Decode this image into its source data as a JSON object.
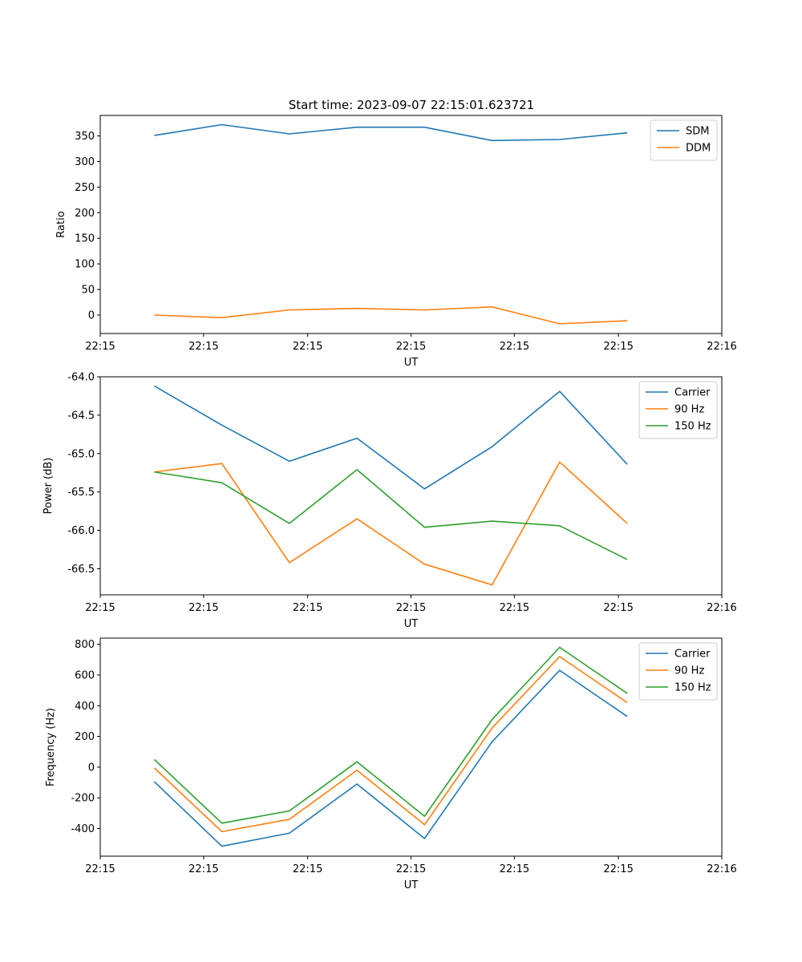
{
  "figure_title": "Start time: 2023-09-07 22:15:01.623721",
  "chart_data": [
    {
      "type": "line",
      "title": "Start time: 2023-09-07 22:15:01.623721",
      "xlabel": "UT",
      "ylabel": "Ratio",
      "x_points": [
        1,
        2,
        3,
        4,
        5,
        6,
        7,
        8
      ],
      "xlim": [
        0.2,
        9.4
      ],
      "xticks": [
        {
          "pos": 0.2,
          "label": "22:15"
        },
        {
          "pos": 1.73,
          "label": "22:15"
        },
        {
          "pos": 3.27,
          "label": "22:15"
        },
        {
          "pos": 4.8,
          "label": "22:15"
        },
        {
          "pos": 6.33,
          "label": "22:15"
        },
        {
          "pos": 7.87,
          "label": "22:15"
        },
        {
          "pos": 9.4,
          "label": "22:16"
        }
      ],
      "ylim": [
        -36,
        390
      ],
      "yticks": [
        0,
        50,
        100,
        150,
        200,
        250,
        300,
        350
      ],
      "legend_position": "top-right",
      "series": [
        {
          "name": "SDM",
          "color": "#1f77b4",
          "values": [
            351,
            372,
            354,
            367,
            367,
            341,
            343,
            356
          ]
        },
        {
          "name": "DDM",
          "color": "#ff7f0e",
          "values": [
            0,
            -5,
            10,
            13,
            10,
            16,
            -17,
            -11
          ]
        }
      ]
    },
    {
      "type": "line",
      "title": "",
      "xlabel": "UT",
      "ylabel": "Power (dB)",
      "x_points": [
        1,
        2,
        3,
        4,
        5,
        6,
        7,
        8
      ],
      "xlim": [
        0.2,
        9.4
      ],
      "xticks": [
        {
          "pos": 0.2,
          "label": "22:15"
        },
        {
          "pos": 1.73,
          "label": "22:15"
        },
        {
          "pos": 3.27,
          "label": "22:15"
        },
        {
          "pos": 4.8,
          "label": "22:15"
        },
        {
          "pos": 6.33,
          "label": "22:15"
        },
        {
          "pos": 7.87,
          "label": "22:15"
        },
        {
          "pos": 9.4,
          "label": "22:16"
        }
      ],
      "ylim": [
        -66.84,
        -64.0
      ],
      "yticks": [
        -64.0,
        -64.5,
        -65.0,
        -65.5,
        -66.0,
        -66.5
      ],
      "legend_position": "top-right",
      "series": [
        {
          "name": "Carrier",
          "color": "#1f77b4",
          "values": [
            -64.12,
            -64.63,
            -65.1,
            -64.8,
            -65.46,
            -64.91,
            -64.19,
            -65.14
          ]
        },
        {
          "name": "90 Hz",
          "color": "#ff7f0e",
          "values": [
            -65.24,
            -65.13,
            -66.42,
            -65.85,
            -66.44,
            -66.71,
            -65.11,
            -65.91
          ]
        },
        {
          "name": "150 Hz",
          "color": "#2ca02c",
          "values": [
            -65.24,
            -65.38,
            -65.91,
            -65.21,
            -65.96,
            -65.88,
            -65.94,
            -66.38
          ]
        }
      ]
    },
    {
      "type": "line",
      "title": "",
      "xlabel": "UT",
      "ylabel": "Frequency (Hz)",
      "x_points": [
        1,
        2,
        3,
        4,
        5,
        6,
        7,
        8
      ],
      "xlim": [
        0.2,
        9.4
      ],
      "xticks": [
        {
          "pos": 0.2,
          "label": "22:15"
        },
        {
          "pos": 1.73,
          "label": "22:15"
        },
        {
          "pos": 3.27,
          "label": "22:15"
        },
        {
          "pos": 4.8,
          "label": "22:15"
        },
        {
          "pos": 6.33,
          "label": "22:15"
        },
        {
          "pos": 7.87,
          "label": "22:15"
        },
        {
          "pos": 9.4,
          "label": "22:16"
        }
      ],
      "ylim": [
        -580,
        840
      ],
      "yticks": [
        -400,
        -200,
        0,
        200,
        400,
        600,
        800
      ],
      "legend_position": "top-right",
      "series": [
        {
          "name": "Carrier",
          "color": "#1f77b4",
          "values": [
            -95,
            -515,
            -430,
            -110,
            -465,
            165,
            630,
            330
          ]
        },
        {
          "name": "90 Hz",
          "color": "#ff7f0e",
          "values": [
            -5,
            -420,
            -340,
            -20,
            -375,
            255,
            720,
            420
          ]
        },
        {
          "name": "150 Hz",
          "color": "#2ca02c",
          "values": [
            50,
            -365,
            -285,
            35,
            -320,
            310,
            780,
            480
          ]
        }
      ]
    }
  ]
}
